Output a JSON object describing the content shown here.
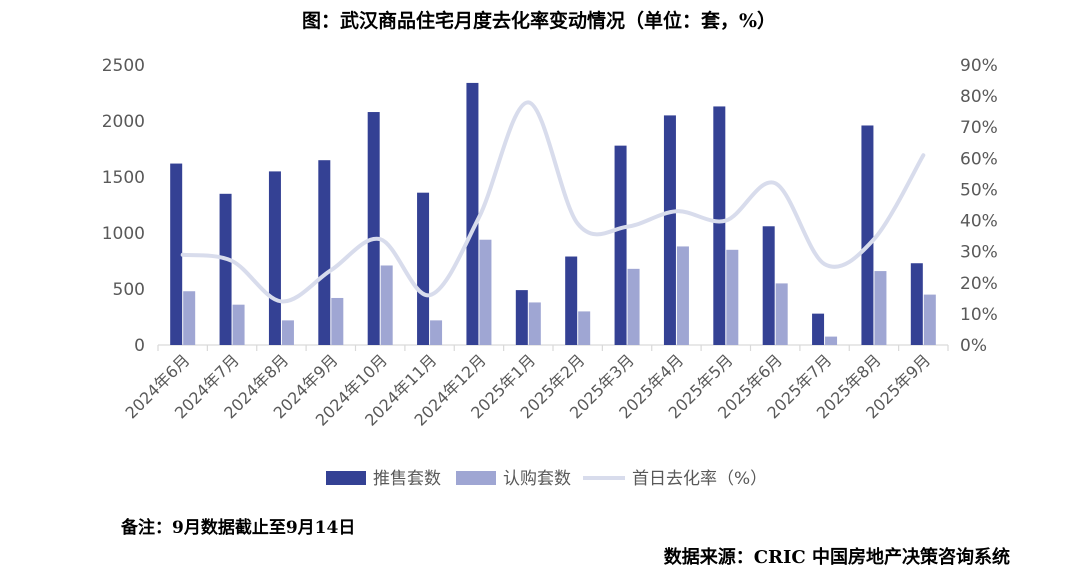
{
  "title": "图：武汉商品住宅月度去化率变动情况（单位：套，%）",
  "note": "备注：9月数据截止至9月14日",
  "source": "数据来源：CRIC 中国房地产决策咨询系统",
  "colors": {
    "supply": "#344194",
    "subscribe": "#9fa6d3",
    "rate": "#d8dcec",
    "axis_text": "#595959",
    "axis_line": "#d9d9d9"
  },
  "chart_data": {
    "type": "bar",
    "categories": [
      "2024年6月",
      "2024年7月",
      "2024年8月",
      "2024年9月",
      "2024年10月",
      "2024年11月",
      "2024年12月",
      "2025年1月",
      "2025年2月",
      "2025年3月",
      "2025年4月",
      "2025年5月",
      "2025年6月",
      "2025年7月",
      "2025年8月",
      "2025年9月"
    ],
    "series": [
      {
        "name": "推售套数",
        "kind": "bar",
        "axis": "left",
        "values": [
          1620,
          1350,
          1550,
          1650,
          2080,
          1360,
          2340,
          490,
          790,
          1780,
          2050,
          2130,
          1060,
          280,
          1960,
          730
        ]
      },
      {
        "name": "认购套数",
        "kind": "bar",
        "axis": "left",
        "values": [
          480,
          360,
          220,
          420,
          710,
          220,
          940,
          380,
          300,
          680,
          880,
          850,
          550,
          75,
          660,
          450
        ]
      },
      {
        "name": "首日去化率（%）",
        "kind": "line",
        "axis": "right",
        "values": [
          29,
          27,
          14,
          24,
          34,
          16,
          41,
          78,
          39,
          38,
          43,
          40,
          52,
          26,
          34,
          61
        ]
      }
    ],
    "ylim": [
      0,
      2500
    ],
    "yticks": [
      "0",
      "500",
      "1000",
      "1500",
      "2000",
      "2500"
    ],
    "y2lim": [
      0,
      90
    ],
    "y2ticks": [
      "0%",
      "10%",
      "20%",
      "30%",
      "40%",
      "50%",
      "60%",
      "70%",
      "80%",
      "90%"
    ],
    "legend_position": "bottom",
    "grid": false
  }
}
